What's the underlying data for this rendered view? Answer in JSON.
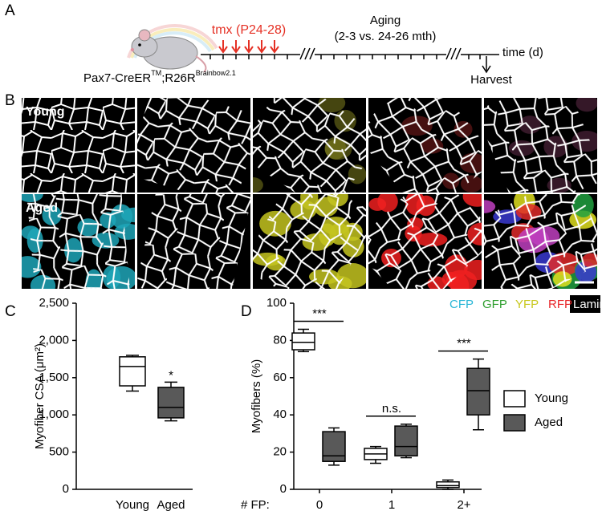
{
  "panel_labels": [
    "A",
    "B",
    "C",
    "D"
  ],
  "timeline": {
    "tmx": "tmx (P24-28)",
    "aging": "Aging",
    "aging_detail": "(2-3 vs. 24-26 mth)",
    "time": "time (d)",
    "harvest": "Harvest",
    "genotype": [
      "Pax7-CreER",
      "TM",
      ";R26R",
      "Brainbow2.1"
    ]
  },
  "images": {
    "rows": [
      "Young",
      "Aged"
    ],
    "channels": [
      {
        "name": "CFP",
        "color": "#29b6d6"
      },
      {
        "name": "GFP",
        "color": "#2e9e2e"
      },
      {
        "name": "YFP",
        "color": "#c8c81e"
      },
      {
        "name": "RFP",
        "color": "#e8262a"
      },
      {
        "name": "Laminin",
        "color": "#ffffff"
      }
    ]
  },
  "chart_data": [
    {
      "type": "box",
      "ylabel": "Myofiber CSA (μm²)",
      "categories": [
        "Young",
        "Aged"
      ],
      "fills": [
        "#ffffff",
        "#595959"
      ],
      "min": [
        1320,
        920
      ],
      "q1": [
        1390,
        960
      ],
      "median": [
        1650,
        1100
      ],
      "q3": [
        1780,
        1370
      ],
      "max": [
        1800,
        1440
      ],
      "annotations": [
        "*"
      ],
      "ylim": [
        0,
        2500
      ],
      "yticks": [
        0,
        500,
        {
          "value": 1000,
          "label": "1,000"
        },
        {
          "value": 1500,
          "label": "1,500"
        },
        {
          "value": 2000,
          "label": "2,000"
        },
        {
          "value": 2500,
          "label": "2,500"
        }
      ]
    },
    {
      "type": "grouped-box",
      "ylabel": "Myofibers (%)",
      "xlabel": "# FP:",
      "categories": [
        "0",
        "1",
        "2+"
      ],
      "series": [
        {
          "name": "Young",
          "color": "#ffffff",
          "min": [
            74,
            14,
            0
          ],
          "q1": [
            75,
            16,
            1
          ],
          "median": [
            79,
            19,
            2
          ],
          "q3": [
            84,
            22,
            4
          ],
          "max": [
            86,
            23,
            5
          ]
        },
        {
          "name": "Aged",
          "color": "#595959",
          "min": [
            13,
            17,
            32
          ],
          "q1": [
            15,
            18,
            40
          ],
          "median": [
            18,
            23,
            53
          ],
          "q3": [
            31,
            34,
            65
          ],
          "max": [
            33,
            35,
            70
          ]
        }
      ],
      "annotations": [
        "***",
        "n.s.",
        "***"
      ],
      "ylim": [
        0,
        100
      ],
      "yticks": [
        0,
        20,
        40,
        60,
        80,
        100
      ]
    }
  ]
}
